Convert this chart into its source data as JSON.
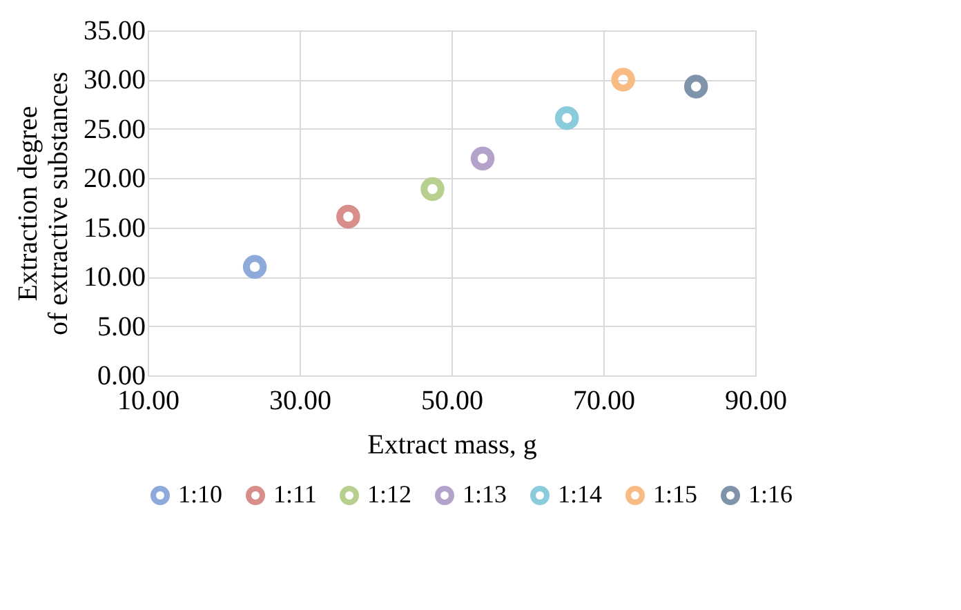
{
  "chart_data": {
    "type": "scatter",
    "xlabel": "Extract mass, g",
    "ylabel": "Extraction degree\nof extractive substances",
    "xlim": [
      10,
      90
    ],
    "xticks": [
      {
        "value": 10,
        "label": "10.00"
      },
      {
        "value": 30,
        "label": "30.00"
      },
      {
        "value": 50,
        "label": "50.00"
      },
      {
        "value": 70,
        "label": "70.00"
      },
      {
        "value": 90,
        "label": "90.00"
      }
    ],
    "ylim": [
      0,
      35
    ],
    "yticks": [
      {
        "value": 0,
        "label": "0.00"
      },
      {
        "value": 5,
        "label": "5.00"
      },
      {
        "value": 10,
        "label": "10.00"
      },
      {
        "value": 15,
        "label": "15.00"
      },
      {
        "value": 20,
        "label": "20.00"
      },
      {
        "value": 25,
        "label": "25.00"
      },
      {
        "value": 30,
        "label": "30.00"
      },
      {
        "value": 35,
        "label": "35.00"
      }
    ],
    "grid": true,
    "legend": "bottom",
    "marker": "circle",
    "series": [
      {
        "name": "1:10",
        "color": "#8eaadb",
        "x": [
          24.1
        ],
        "values": [
          11.0
        ]
      },
      {
        "name": "1:11",
        "color": "#d88e8b",
        "x": [
          36.4
        ],
        "values": [
          16.1
        ]
      },
      {
        "name": "1:12",
        "color": "#b8d08f",
        "x": [
          47.5
        ],
        "values": [
          18.9
        ]
      },
      {
        "name": "1:13",
        "color": "#b3a2c9",
        "x": [
          54.1
        ],
        "values": [
          22.0
        ]
      },
      {
        "name": "1:14",
        "color": "#8acbdc",
        "x": [
          65.2
        ],
        "values": [
          26.1
        ]
      },
      {
        "name": "1:15",
        "color": "#f8bb84",
        "x": [
          72.6
        ],
        "values": [
          30.0
        ]
      },
      {
        "name": "1:16",
        "color": "#7f93aa",
        "x": [
          82.2
        ],
        "values": [
          29.3
        ]
      }
    ]
  }
}
